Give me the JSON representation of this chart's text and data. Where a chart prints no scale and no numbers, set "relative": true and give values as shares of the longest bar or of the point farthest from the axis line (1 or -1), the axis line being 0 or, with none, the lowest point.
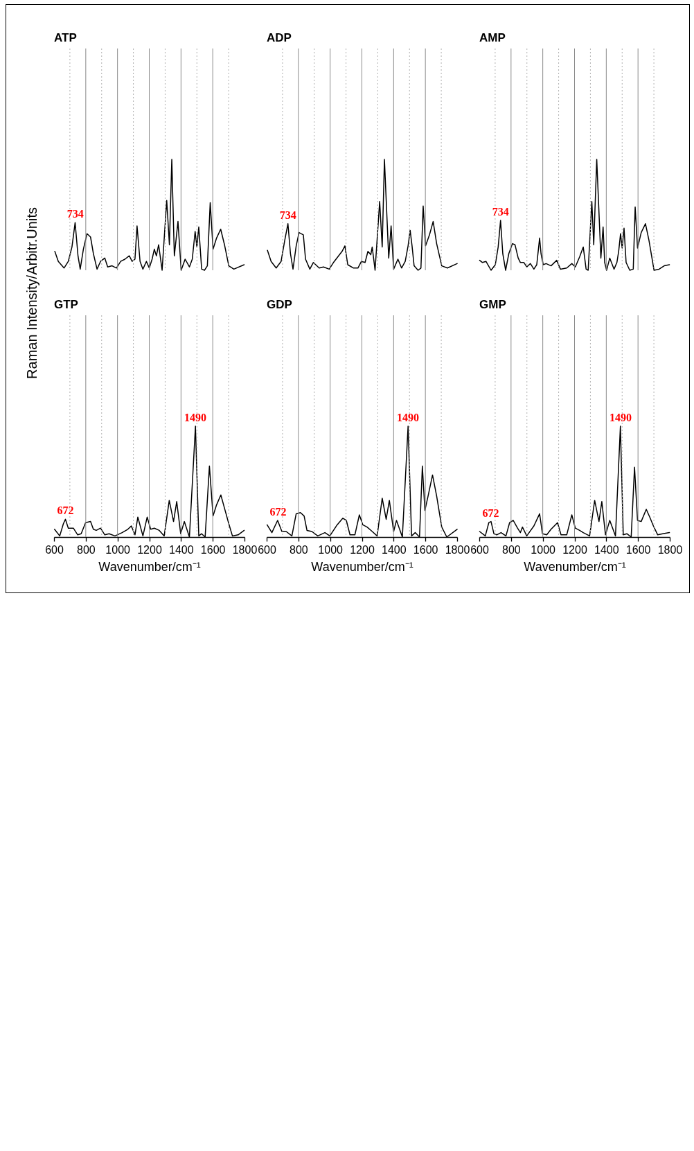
{
  "chart_data": [
    {
      "type": "line",
      "title": "ATP",
      "relative": true,
      "grid": "x",
      "tick_labels": false,
      "ylabel": "Raman Intensity/Arbitr.Units",
      "xlim": [
        600,
        1800
      ],
      "xticks": [
        600,
        {
          "value": 700,
          "label": null
        },
        800,
        {
          "value": 900,
          "label": null
        },
        1000,
        {
          "value": 1100,
          "label": null
        },
        1200,
        {
          "value": 1300,
          "label": null
        },
        1400,
        {
          "value": 1500,
          "label": null
        },
        1600,
        {
          "value": 1700,
          "label": null
        },
        1800
      ],
      "x": [
        605,
        627,
        645,
        663,
        690,
        713,
        733,
        751,
        765,
        785,
        808,
        830,
        848,
        871,
        893,
        920,
        938,
        966,
        993,
        1020,
        1047,
        1074,
        1092,
        1110,
        1123,
        1142,
        1160,
        1182,
        1200,
        1218,
        1232,
        1245,
        1259,
        1281,
        1310,
        1327,
        1342,
        1358,
        1381,
        1401,
        1426,
        1453,
        1471,
        1489,
        1500,
        1512,
        1530,
        1548,
        1566,
        1584,
        1602,
        1624,
        1650,
        1674,
        1701,
        1733,
        1798
      ],
      "series": [
        {
          "color": "#000000",
          "values": [
            0.17,
            0.08,
            0.05,
            0.02,
            0.08,
            0.21,
            0.43,
            0.13,
            0.01,
            0.19,
            0.33,
            0.3,
            0.15,
            0.01,
            0.08,
            0.11,
            0.03,
            0.04,
            0.02,
            0.08,
            0.1,
            0.13,
            0.08,
            0.1,
            0.4,
            0.08,
            0.01,
            0.08,
            0.02,
            0.1,
            0.19,
            0.13,
            0.23,
            0,
            0.63,
            0.23,
            1,
            0.13,
            0.44,
            0,
            0.1,
            0.03,
            0.1,
            0.35,
            0.21,
            0.39,
            0.01,
            0,
            0.04,
            0.61,
            0.19,
            0.29,
            0.37,
            0.23,
            0.04,
            0.01,
            0.05
          ]
        }
      ],
      "annotations": [
        {
          "text": "734",
          "x": 734,
          "y": 0.43
        }
      ]
    },
    {
      "type": "line",
      "title": "ADP",
      "relative": true,
      "grid": "x",
      "tick_labels": false,
      "xlim": [
        600,
        1800
      ],
      "xticks": [
        600,
        {
          "value": 700,
          "label": null
        },
        800,
        {
          "value": 900,
          "label": null
        },
        1000,
        {
          "value": 1100,
          "label": null
        },
        1200,
        {
          "value": 1300,
          "label": null
        },
        1400,
        {
          "value": 1500,
          "label": null
        },
        1600,
        {
          "value": 1700,
          "label": null
        },
        1800
      ],
      "x": [
        605,
        628,
        660,
        691,
        714,
        734,
        750,
        766,
        786,
        804,
        831,
        845,
        872,
        894,
        931,
        958,
        994,
        1021,
        1048,
        1075,
        1093,
        1111,
        1147,
        1175,
        1197,
        1220,
        1238,
        1256,
        1265,
        1283,
        1312,
        1328,
        1342,
        1369,
        1384,
        1400,
        1427,
        1450,
        1473,
        1491,
        1504,
        1516,
        1529,
        1554,
        1572,
        1586,
        1601,
        1626,
        1649,
        1671,
        1703,
        1739,
        1800
      ],
      "series": [
        {
          "color": "#000000",
          "values": [
            0.18,
            0.08,
            0.02,
            0.08,
            0.27,
            0.42,
            0.15,
            0.01,
            0.22,
            0.34,
            0.32,
            0.1,
            0.01,
            0.07,
            0.02,
            0.03,
            0.01,
            0.07,
            0.12,
            0.17,
            0.22,
            0.05,
            0.02,
            0.02,
            0.08,
            0.07,
            0.17,
            0.14,
            0.21,
            0,
            0.62,
            0.21,
            1,
            0.11,
            0.4,
            0.01,
            0.1,
            0.02,
            0.08,
            0.22,
            0.36,
            0.22,
            0.04,
            0,
            0.02,
            0.58,
            0.22,
            0.32,
            0.44,
            0.24,
            0.04,
            0.02,
            0.06
          ]
        }
      ],
      "annotations": [
        {
          "text": "734",
          "x": 734,
          "y": 0.42
        }
      ]
    },
    {
      "type": "line",
      "title": "AMP",
      "relative": true,
      "grid": "x",
      "tick_labels": false,
      "xlim": [
        600,
        1800
      ],
      "xticks": [
        600,
        {
          "value": 700,
          "label": null
        },
        800,
        {
          "value": 900,
          "label": null
        },
        1000,
        {
          "value": 1100,
          "label": null
        },
        1200,
        {
          "value": 1300,
          "label": null
        },
        1400,
        {
          "value": 1500,
          "label": null
        },
        1600,
        {
          "value": 1700,
          "label": null
        },
        1800
      ],
      "x": [
        602,
        620,
        642,
        674,
        701,
        719,
        734,
        748,
        766,
        786,
        809,
        825,
        845,
        859,
        881,
        899,
        922,
        944,
        962,
        980,
        989,
        1003,
        1021,
        1052,
        1088,
        1111,
        1151,
        1183,
        1205,
        1232,
        1255,
        1273,
        1286,
        1309,
        1321,
        1340,
        1366,
        1380,
        1390,
        1402,
        1422,
        1449,
        1467,
        1478,
        1490,
        1500,
        1512,
        1525,
        1548,
        1570,
        1582,
        1597,
        1620,
        1647,
        1669,
        1701,
        1733,
        1765,
        1798
      ],
      "series": [
        {
          "color": "#000000",
          "values": [
            0.09,
            0.07,
            0.08,
            0,
            0.05,
            0.21,
            0.45,
            0.15,
            0,
            0.15,
            0.24,
            0.23,
            0.11,
            0.07,
            0.07,
            0.03,
            0.06,
            0.01,
            0.05,
            0.29,
            0.15,
            0.05,
            0.06,
            0.04,
            0.09,
            0.01,
            0.02,
            0.06,
            0.03,
            0.12,
            0.21,
            0.01,
            0,
            0.62,
            0.23,
            1,
            0.11,
            0.39,
            0.07,
            0,
            0.11,
            0.01,
            0.07,
            0.17,
            0.33,
            0.2,
            0.38,
            0.07,
            0,
            0.01,
            0.57,
            0.2,
            0.34,
            0.42,
            0.27,
            0,
            0.01,
            0.04,
            0.05
          ]
        }
      ],
      "annotations": [
        {
          "text": "734",
          "x": 734,
          "y": 0.45
        }
      ]
    },
    {
      "type": "line",
      "title": "GTP",
      "relative": true,
      "grid": "x",
      "tick_labels": "x",
      "xlabel": "Wavenumber/cm⁻¹",
      "xlim": [
        600,
        1800
      ],
      "xticks": [
        600,
        {
          "value": 700,
          "label": null
        },
        800,
        {
          "value": 900,
          "label": null
        },
        1000,
        {
          "value": 1100,
          "label": null
        },
        1200,
        {
          "value": 1300,
          "label": null
        },
        1400,
        {
          "value": 1500,
          "label": null
        },
        1600,
        {
          "value": 1700,
          "label": null
        },
        1800
      ],
      "x": [
        603,
        636,
        659,
        672,
        690,
        722,
        749,
        771,
        799,
        830,
        848,
        866,
        893,
        920,
        947,
        984,
        1029,
        1065,
        1087,
        1110,
        1128,
        1160,
        1187,
        1209,
        1232,
        1263,
        1294,
        1326,
        1353,
        1373,
        1398,
        1421,
        1453,
        1491,
        1512,
        1530,
        1552,
        1579,
        1602,
        1624,
        1651,
        1674,
        1701,
        1724,
        1760,
        1798
      ],
      "series": [
        {
          "color": "#000000",
          "values": [
            0.07,
            0.01,
            0.12,
            0.16,
            0.08,
            0.08,
            0.02,
            0.03,
            0.13,
            0.14,
            0.07,
            0.06,
            0.08,
            0.02,
            0.03,
            0.01,
            0.04,
            0.07,
            0.1,
            0.02,
            0.18,
            0.01,
            0.18,
            0.07,
            0.08,
            0.06,
            0.01,
            0.33,
            0.14,
            0.32,
            0.03,
            0.14,
            0,
            1,
            0.01,
            0.03,
            0,
            0.64,
            0.19,
            0.29,
            0.38,
            0.26,
            0.12,
            0.01,
            0.02,
            0.06
          ]
        }
      ],
      "annotations": [
        {
          "text": "672",
          "x": 672,
          "y": 0.16
        },
        {
          "text": "1490",
          "x": 1490,
          "y": 1
        }
      ]
    },
    {
      "type": "line",
      "title": "GDP",
      "relative": true,
      "grid": "x",
      "tick_labels": "x",
      "xlabel": "Wavenumber/cm⁻¹",
      "xlim": [
        600,
        1800
      ],
      "xticks": [
        600,
        {
          "value": 700,
          "label": null
        },
        800,
        {
          "value": 900,
          "label": null
        },
        1000,
        {
          "value": 1100,
          "label": null
        },
        1200,
        {
          "value": 1300,
          "label": null
        },
        1400,
        {
          "value": 1500,
          "label": null
        },
        1600,
        {
          "value": 1700,
          "label": null
        },
        1800
      ],
      "x": [
        603,
        633,
        669,
        696,
        723,
        759,
        786,
        813,
        836,
        854,
        885,
        922,
        967,
        998,
        1044,
        1080,
        1102,
        1125,
        1156,
        1184,
        1206,
        1233,
        1265,
        1296,
        1328,
        1353,
        1373,
        1400,
        1418,
        1455,
        1491,
        1513,
        1536,
        1563,
        1581,
        1597,
        1617,
        1645,
        1671,
        1703,
        1735,
        1800
      ],
      "series": [
        {
          "color": "#000000",
          "values": [
            0.11,
            0.04,
            0.15,
            0.05,
            0.05,
            0.01,
            0.21,
            0.22,
            0.19,
            0.06,
            0.05,
            0.01,
            0.04,
            0.01,
            0.11,
            0.17,
            0.15,
            0.02,
            0.02,
            0.2,
            0.11,
            0.09,
            0.05,
            0.01,
            0.35,
            0.16,
            0.33,
            0.05,
            0.15,
            0,
            1,
            0.01,
            0.04,
            0,
            0.64,
            0.24,
            0.37,
            0.56,
            0.37,
            0.09,
            0,
            0.07
          ]
        }
      ],
      "annotations": [
        {
          "text": "672",
          "x": 672,
          "y": 0.15
        },
        {
          "text": "1490",
          "x": 1490,
          "y": 1
        }
      ]
    },
    {
      "type": "line",
      "title": "GMP",
      "relative": true,
      "grid": "x",
      "tick_labels": "x",
      "xlabel": "Wavenumber/cm⁻¹",
      "xlim": [
        600,
        1800
      ],
      "xticks": [
        600,
        {
          "value": 700,
          "label": null
        },
        800,
        {
          "value": 900,
          "label": null
        },
        1000,
        {
          "value": 1100,
          "label": null
        },
        1200,
        {
          "value": 1300,
          "label": null
        },
        1400,
        {
          "value": 1500,
          "label": null
        },
        1600,
        {
          "value": 1700,
          "label": null
        },
        1800
      ],
      "x": [
        602,
        638,
        660,
        674,
        692,
        710,
        737,
        768,
        791,
        814,
        841,
        859,
        872,
        899,
        944,
        980,
        998,
        1025,
        1052,
        1093,
        1115,
        1151,
        1183,
        1205,
        1232,
        1255,
        1295,
        1327,
        1354,
        1372,
        1395,
        1422,
        1458,
        1489,
        1507,
        1530,
        1557,
        1578,
        1597,
        1620,
        1652,
        1674,
        1697,
        1724,
        1756,
        1798
      ],
      "series": [
        {
          "color": "#000000",
          "values": [
            0.05,
            0.01,
            0.13,
            0.14,
            0.03,
            0.02,
            0.04,
            0.01,
            0.13,
            0.15,
            0.08,
            0.04,
            0.09,
            0.01,
            0.1,
            0.21,
            0.03,
            0.02,
            0.07,
            0.13,
            0.02,
            0.02,
            0.2,
            0.08,
            0.06,
            0.04,
            0.01,
            0.33,
            0.14,
            0.32,
            0.02,
            0.15,
            0.01,
            1,
            0.02,
            0.03,
            0,
            0.63,
            0.15,
            0.14,
            0.25,
            0.18,
            0.1,
            0.02,
            0.03,
            0.04
          ]
        }
      ],
      "annotations": [
        {
          "text": "672",
          "x": 672,
          "y": 0.14
        },
        {
          "text": "1490",
          "x": 1490,
          "y": 1
        }
      ]
    }
  ]
}
